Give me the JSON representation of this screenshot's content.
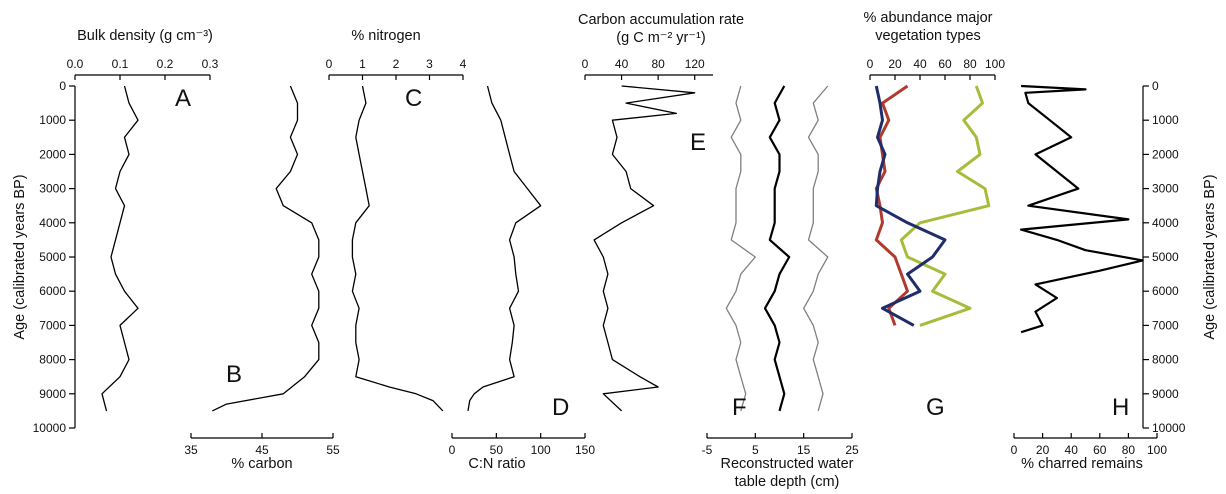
{
  "chart_data": {
    "type": "line",
    "age_axis": {
      "label": "Age (calibrated years BP)",
      "range": [
        0,
        10000
      ],
      "ticks": [
        0,
        1000,
        2000,
        3000,
        4000,
        5000,
        6000,
        7000,
        8000,
        9000,
        10000
      ]
    },
    "panels": [
      {
        "letter": "A",
        "label": "Bulk density (g cm⁻³)",
        "axis_position": "top",
        "range": [
          0.0,
          0.3
        ],
        "ticks": [
          "0.0",
          "0.1",
          "0.2",
          "0.3"
        ],
        "series": [
          {
            "color": "#000000",
            "age": [
              0,
              500,
              1000,
              1500,
              2000,
              2500,
              3000,
              3500,
              4000,
              4500,
              5000,
              5500,
              6000,
              6500,
              7000,
              7500,
              8000,
              8500,
              9000,
              9500
            ],
            "value": [
              0.11,
              0.12,
              0.14,
              0.11,
              0.12,
              0.1,
              0.09,
              0.11,
              0.1,
              0.09,
              0.08,
              0.09,
              0.11,
              0.14,
              0.1,
              0.11,
              0.12,
              0.1,
              0.06,
              0.07
            ]
          }
        ]
      },
      {
        "letter": "B",
        "label": "% carbon",
        "axis_position": "bottom",
        "range": [
          35,
          55
        ],
        "ticks": [
          "35",
          "45",
          "55"
        ],
        "series": [
          {
            "color": "#000000",
            "age": [
              0,
              500,
              1000,
              1500,
              2000,
              2500,
              3000,
              3500,
              4000,
              4500,
              5000,
              5500,
              6000,
              6500,
              7000,
              7500,
              8000,
              8500,
              9000,
              9300,
              9500
            ],
            "value": [
              49,
              50,
              50,
              49,
              50,
              49,
              47,
              48,
              52,
              53,
              53,
              52,
              53,
              53,
              52,
              53,
              53,
              51,
              48,
              40,
              38
            ]
          }
        ]
      },
      {
        "letter": "C",
        "label": "% nitrogen",
        "axis_position": "top",
        "range": [
          0,
          4
        ],
        "ticks": [
          "0",
          "1",
          "2",
          "3",
          "4"
        ],
        "series": [
          {
            "color": "#000000",
            "age": [
              0,
              500,
              1000,
              1500,
              2000,
              2500,
              3000,
              3500,
              4000,
              4500,
              5000,
              5500,
              6000,
              6500,
              7000,
              7500,
              8000,
              8500,
              8800,
              9000,
              9200,
              9500
            ],
            "value": [
              1.0,
              1.1,
              0.9,
              0.8,
              0.9,
              1.0,
              1.1,
              1.2,
              0.8,
              0.7,
              0.7,
              0.8,
              0.7,
              0.9,
              0.8,
              0.8,
              0.9,
              0.8,
              1.8,
              2.6,
              3.1,
              3.4
            ]
          }
        ]
      },
      {
        "letter": "D",
        "label": "C:N ratio",
        "axis_position": "bottom",
        "range": [
          0,
          150
        ],
        "ticks": [
          "0",
          "50",
          "100",
          "150"
        ],
        "series": [
          {
            "color": "#000000",
            "age": [
              0,
              500,
              1000,
              1500,
              2000,
              2500,
              3000,
              3500,
              4000,
              4500,
              5000,
              5500,
              6000,
              6500,
              7000,
              7500,
              8000,
              8500,
              8800,
              9000,
              9200,
              9500
            ],
            "value": [
              40,
              45,
              55,
              60,
              65,
              70,
              85,
              100,
              72,
              65,
              70,
              72,
              75,
              65,
              70,
              68,
              65,
              70,
              35,
              25,
              20,
              18
            ]
          }
        ]
      },
      {
        "letter": "E",
        "label": "Carbon accumulation rate",
        "label2": "(g C m⁻² yr⁻¹)",
        "axis_position": "top",
        "range": [
          0,
          140
        ],
        "ticks": [
          "0",
          "40",
          "80",
          "120"
        ],
        "series": [
          {
            "color": "#000000",
            "age": [
              0,
              200,
              500,
              800,
              1000,
              1500,
              2000,
              2500,
              3000,
              3500,
              4000,
              4500,
              5000,
              5500,
              6000,
              6500,
              7000,
              7500,
              8000,
              8500,
              8800,
              9000,
              9500
            ],
            "value": [
              40,
              120,
              45,
              100,
              30,
              35,
              30,
              45,
              50,
              75,
              40,
              10,
              20,
              25,
              20,
              25,
              20,
              25,
              30,
              60,
              80,
              20,
              40
            ]
          }
        ]
      },
      {
        "letter": "F",
        "label": "Reconstructed water",
        "label2": "table depth (cm)",
        "axis_position": "bottom",
        "range": [
          -5,
          25
        ],
        "ticks": [
          "-5",
          "5",
          "15",
          "25"
        ],
        "series": [
          {
            "color": "#000000",
            "age": [
              0,
              500,
              1000,
              1500,
              2000,
              2500,
              3000,
              3500,
              4000,
              4500,
              5000,
              5500,
              6000,
              6500,
              7000,
              7500,
              8000,
              8500,
              9000,
              9500
            ],
            "value": [
              11,
              9,
              10,
              8,
              10,
              10,
              9,
              9,
              9,
              8,
              12,
              10,
              9,
              7,
              9,
              10,
              9,
              10,
              11,
              10
            ]
          },
          {
            "color": "#808080",
            "age": [
              0,
              500,
              1000,
              1500,
              2000,
              2500,
              3000,
              3500,
              4000,
              4500,
              5000,
              5500,
              6000,
              6500,
              7000,
              7500,
              8000,
              8500,
              9000,
              9500
            ],
            "value": [
              2,
              1,
              2,
              0,
              2,
              2,
              1,
              1,
              1,
              0,
              5,
              2,
              1,
              -1,
              1,
              2,
              1,
              2,
              3,
              2
            ]
          },
          {
            "color": "#808080",
            "age": [
              0,
              500,
              1000,
              1500,
              2000,
              2500,
              3000,
              3500,
              4000,
              4500,
              5000,
              5500,
              6000,
              6500,
              7000,
              7500,
              8000,
              8500,
              9000,
              9500
            ],
            "value": [
              20,
              17,
              18,
              16,
              18,
              18,
              17,
              17,
              17,
              16,
              20,
              18,
              17,
              15,
              17,
              18,
              17,
              18,
              19,
              18
            ]
          }
        ]
      },
      {
        "letter": "G",
        "label": "% abundance major",
        "label2": "vegetation types",
        "axis_position": "top",
        "range": [
          0,
          100
        ],
        "ticks": [
          "0",
          "20",
          "40",
          "60",
          "80",
          "100"
        ],
        "series": [
          {
            "color": "#a6bd3c",
            "age": [
              0,
              500,
              1000,
              1500,
              2000,
              2500,
              3000,
              3500,
              4000,
              4500,
              5000,
              5500,
              6000,
              6500,
              7000
            ],
            "value": [
              85,
              90,
              75,
              85,
              88,
              70,
              92,
              95,
              40,
              25,
              30,
              60,
              50,
              80,
              40
            ]
          },
          {
            "color": "#b03a2e",
            "age": [
              0,
              500,
              1000,
              1500,
              2000,
              2500,
              3000,
              3500,
              4000,
              4500,
              5000,
              5500,
              6000,
              6500,
              7000
            ],
            "value": [
              30,
              10,
              15,
              8,
              10,
              12,
              5,
              8,
              10,
              5,
              20,
              25,
              30,
              15,
              20
            ]
          },
          {
            "color": "#1f2d6b",
            "age": [
              0,
              500,
              1000,
              1500,
              2000,
              2500,
              3000,
              3500,
              4000,
              4500,
              5000,
              5500,
              6000,
              6500,
              7000
            ],
            "value": [
              5,
              8,
              10,
              6,
              12,
              8,
              6,
              5,
              30,
              60,
              50,
              30,
              40,
              10,
              35
            ]
          }
        ]
      },
      {
        "letter": "H",
        "label": "% charred remains",
        "axis_position": "bottom",
        "range": [
          0,
          100
        ],
        "ticks": [
          "0",
          "20",
          "40",
          "60",
          "80",
          "100"
        ],
        "series": [
          {
            "color": "#000000",
            "age": [
              0,
              100,
              200,
              500,
              1000,
              1500,
              2000,
              2500,
              3000,
              3500,
              3900,
              4200,
              4500,
              4800,
              5100,
              5400,
              5800,
              6200,
              6600,
              7000,
              7200
            ],
            "value": [
              5,
              50,
              8,
              10,
              25,
              40,
              15,
              30,
              45,
              10,
              80,
              5,
              30,
              50,
              90,
              60,
              15,
              30,
              15,
              20,
              5
            ]
          }
        ]
      }
    ]
  }
}
